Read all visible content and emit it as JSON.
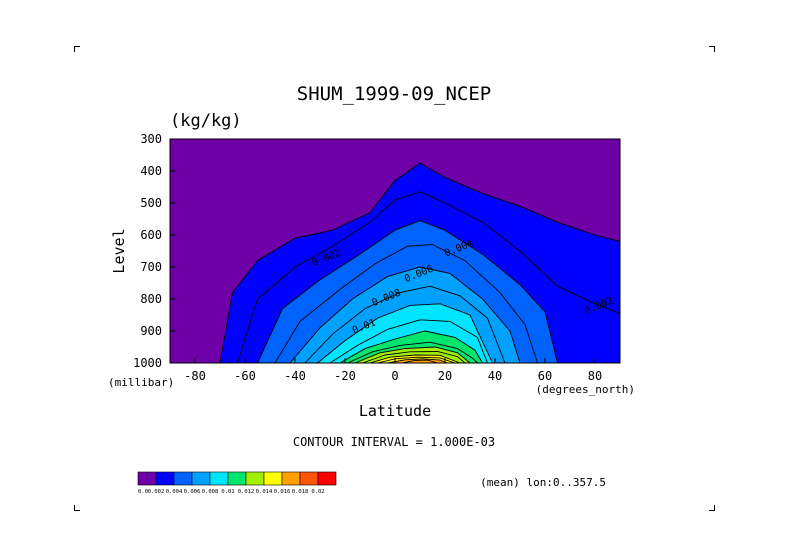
{
  "chart_data": {
    "type": "heatmap",
    "subtype": "filled-contour",
    "title": "SHUM_1999-09_NCEP",
    "units_label": "(kg/kg)",
    "xlabel": "Latitude",
    "ylabel": "Level",
    "x_units_label": "(degrees_north)",
    "y_units_label": "(millibar)",
    "xlim": [
      -90,
      90
    ],
    "ylim": [
      1000,
      300
    ],
    "x_ticks": [
      -80,
      -60,
      -40,
      -20,
      0,
      20,
      40,
      60,
      80
    ],
    "y_ticks": [
      300,
      400,
      500,
      600,
      700,
      800,
      900,
      1000
    ],
    "contour_interval_text": "CONTOUR INTERVAL = 1.000E-03",
    "footnote": "(mean) lon:0..357.5",
    "contour_labels": [
      {
        "text": "0.002",
        "lat": -27,
        "level": 680
      },
      {
        "text": "0.004",
        "lat": 26,
        "level": 650
      },
      {
        "text": "0.006",
        "lat": 10,
        "level": 730
      },
      {
        "text": "0.008",
        "lat": -3,
        "level": 805
      },
      {
        "text": "0.01",
        "lat": -12,
        "level": 895
      },
      {
        "text": "0.002",
        "lat": 82,
        "level": 830
      }
    ],
    "colorbar": {
      "levels": [
        "0.0",
        "0.002",
        "0.004",
        "0.006",
        "0.008",
        "0.01",
        "0.012",
        "0.014",
        "0.016",
        "0.018",
        "0.02"
      ],
      "colors": [
        "#6f00a8",
        "#0000ff",
        "#0062ff",
        "#00a0ff",
        "#00e5ff",
        "#00e56e",
        "#a0f000",
        "#ffff00",
        "#ffa000",
        "#ff5500",
        "#ff0000"
      ]
    },
    "isolines": [
      {
        "value": 0.002,
        "points": [
          [
            -70,
            1000
          ],
          [
            -65,
            780
          ],
          [
            -55,
            680
          ],
          [
            -40,
            610
          ],
          [
            -25,
            585
          ],
          [
            -10,
            530
          ],
          [
            0,
            430
          ],
          [
            10,
            375
          ],
          [
            20,
            420
          ],
          [
            35,
            470
          ],
          [
            50,
            510
          ],
          [
            65,
            560
          ],
          [
            80,
            600
          ],
          [
            90,
            620
          ]
        ]
      },
      {
        "value": 0.003,
        "points": [
          [
            -63,
            1000
          ],
          [
            -55,
            800
          ],
          [
            -40,
            700
          ],
          [
            -25,
            635
          ],
          [
            -10,
            560
          ],
          [
            0,
            490
          ],
          [
            10,
            465
          ],
          [
            20,
            500
          ],
          [
            35,
            560
          ],
          [
            50,
            650
          ],
          [
            65,
            760
          ],
          [
            80,
            815
          ],
          [
            90,
            845
          ]
        ]
      },
      {
        "value": 0.004,
        "points": [
          [
            -55,
            1000
          ],
          [
            -45,
            830
          ],
          [
            -30,
            740
          ],
          [
            -15,
            665
          ],
          [
            0,
            585
          ],
          [
            10,
            555
          ],
          [
            20,
            585
          ],
          [
            35,
            660
          ],
          [
            50,
            755
          ],
          [
            60,
            840
          ],
          [
            65,
            1000
          ]
        ]
      },
      {
        "value": 0.005,
        "points": [
          [
            -48,
            1000
          ],
          [
            -38,
            870
          ],
          [
            -22,
            770
          ],
          [
            -8,
            690
          ],
          [
            5,
            635
          ],
          [
            15,
            630
          ],
          [
            28,
            680
          ],
          [
            42,
            780
          ],
          [
            52,
            880
          ],
          [
            57,
            1000
          ]
        ]
      },
      {
        "value": 0.006,
        "points": [
          [
            -42,
            1000
          ],
          [
            -30,
            890
          ],
          [
            -17,
            800
          ],
          [
            -3,
            730
          ],
          [
            10,
            700
          ],
          [
            22,
            720
          ],
          [
            35,
            800
          ],
          [
            46,
            900
          ],
          [
            50,
            1000
          ]
        ]
      },
      {
        "value": 0.007,
        "points": [
          [
            -36,
            1000
          ],
          [
            -25,
            910
          ],
          [
            -12,
            830
          ],
          [
            2,
            780
          ],
          [
            14,
            760
          ],
          [
            26,
            790
          ],
          [
            37,
            860
          ],
          [
            44,
            1000
          ]
        ]
      },
      {
        "value": 0.008,
        "points": [
          [
            -31,
            1000
          ],
          [
            -20,
            930
          ],
          [
            -7,
            860
          ],
          [
            6,
            820
          ],
          [
            18,
            815
          ],
          [
            30,
            850
          ],
          [
            39,
            1000
          ]
        ]
      },
      {
        "value": 0.009,
        "points": [
          [
            -26,
            1000
          ],
          [
            -15,
            945
          ],
          [
            -3,
            895
          ],
          [
            10,
            865
          ],
          [
            22,
            870
          ],
          [
            33,
            920
          ],
          [
            37,
            1000
          ]
        ]
      },
      {
        "value": 0.01,
        "points": [
          [
            -22,
            1000
          ],
          [
            -12,
            955
          ],
          [
            0,
            925
          ],
          [
            12,
            900
          ],
          [
            24,
            920
          ],
          [
            32,
            960
          ],
          [
            35,
            1000
          ]
        ]
      },
      {
        "value": 0.011,
        "points": [
          [
            -19,
            1000
          ],
          [
            -9,
            965
          ],
          [
            2,
            945
          ],
          [
            14,
            935
          ],
          [
            25,
            955
          ],
          [
            31,
            985
          ],
          [
            33,
            1000
          ]
        ]
      },
      {
        "value": 0.012,
        "points": [
          [
            -16,
            1000
          ],
          [
            -6,
            968
          ],
          [
            4,
            955
          ],
          [
            16,
            950
          ],
          [
            25,
            968
          ],
          [
            30,
            1000
          ]
        ]
      },
      {
        "value": 0.013,
        "points": [
          [
            -13,
            1000
          ],
          [
            -4,
            975
          ],
          [
            6,
            965
          ],
          [
            17,
            964
          ],
          [
            25,
            980
          ],
          [
            28,
            1000
          ]
        ]
      },
      {
        "value": 0.014,
        "points": [
          [
            -10,
            1000
          ],
          [
            -2,
            982
          ],
          [
            8,
            975
          ],
          [
            18,
            976
          ],
          [
            26,
            1000
          ]
        ]
      },
      {
        "value": 0.015,
        "points": [
          [
            -7,
            1000
          ],
          [
            0,
            987
          ],
          [
            9,
            982
          ],
          [
            18,
            984
          ],
          [
            24,
            1000
          ]
        ]
      },
      {
        "value": 0.016,
        "points": [
          [
            -3,
            1000
          ],
          [
            4,
            990
          ],
          [
            11,
            987
          ],
          [
            18,
            991
          ],
          [
            21,
            1000
          ]
        ]
      },
      {
        "value": 0.017,
        "points": [
          [
            3,
            1000
          ],
          [
            8,
            992
          ],
          [
            13,
            991
          ],
          [
            17,
            1000
          ]
        ]
      }
    ]
  }
}
